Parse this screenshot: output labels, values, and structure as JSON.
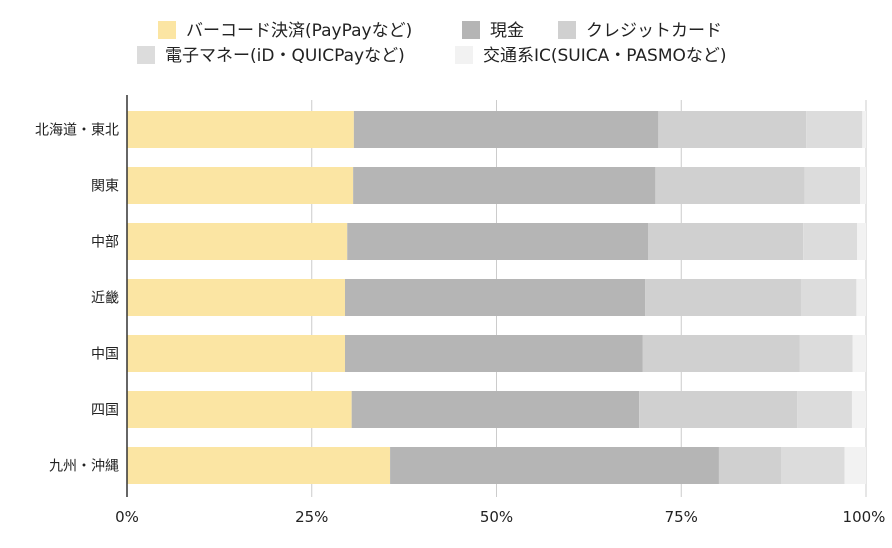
{
  "chart_data": {
    "type": "bar",
    "orientation": "horizontal",
    "stacked": true,
    "normalized": true,
    "title": "",
    "xlabel": "",
    "ylabel": "",
    "xlim": [
      0,
      100
    ],
    "x_ticks": [
      "0%",
      "25%",
      "50%",
      "75%",
      "100%"
    ],
    "grid": true,
    "legend_position": "top",
    "categories": [
      "北海道・東北",
      "関東",
      "中部",
      "近畿",
      "中国",
      "四国",
      "九州・沖縄"
    ],
    "series": [
      {
        "name": "バーコード決済(PayPayなど)",
        "color": "#fbe5a3",
        "values": [
          30.7,
          30.6,
          29.8,
          29.5,
          29.5,
          30.4,
          35.6
        ]
      },
      {
        "name": "現金",
        "color": "#b5b5b5",
        "values": [
          41.2,
          40.9,
          40.7,
          40.6,
          40.3,
          38.9,
          44.5
        ]
      },
      {
        "name": "クレジットカード",
        "color": "#d0d0d0",
        "values": [
          20.0,
          20.2,
          21.0,
          21.1,
          21.2,
          21.4,
          8.4
        ]
      },
      {
        "name": "電子マネー(iD・QUICPayなど)",
        "color": "#dcdcdc",
        "values": [
          7.6,
          7.5,
          7.3,
          7.5,
          7.2,
          7.4,
          8.6
        ]
      },
      {
        "name": "交通系IC(SUICA・PASMOなど)",
        "color": "#f2f2f2",
        "values": [
          0.5,
          0.8,
          1.2,
          1.3,
          1.8,
          1.9,
          2.9
        ]
      }
    ]
  }
}
